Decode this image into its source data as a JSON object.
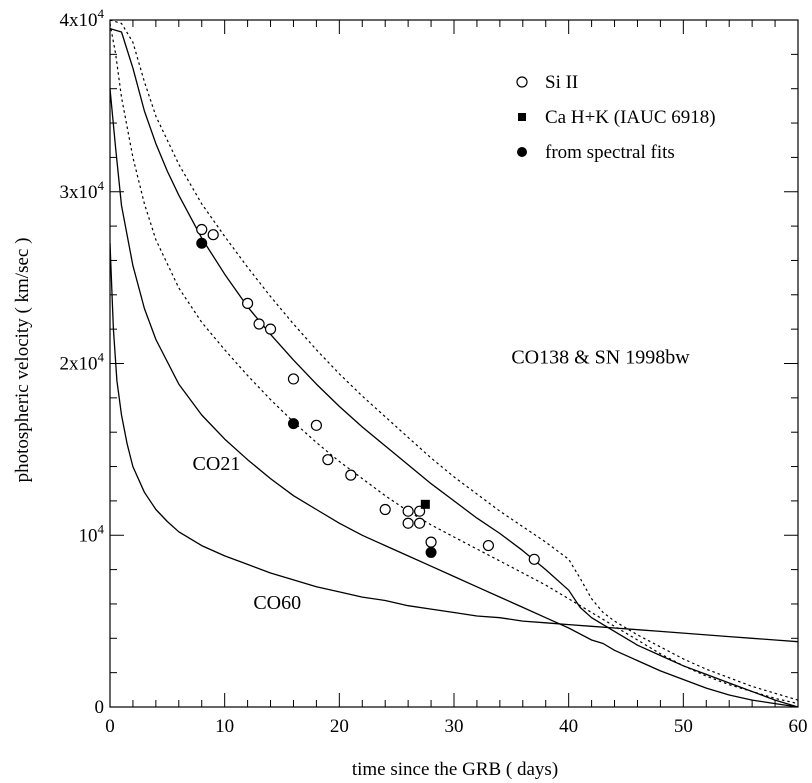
{
  "chart_data": {
    "type": "line",
    "xlabel": "time since the GRB ( days)",
    "ylabel": "photospheric velocity ( km/sec )",
    "xlim": [
      0,
      60
    ],
    "ylim": [
      0,
      40000
    ],
    "x_ticks": [
      {
        "value": 0,
        "label": "0"
      },
      {
        "value": 10,
        "label": "10"
      },
      {
        "value": 20,
        "label": "20"
      },
      {
        "value": 30,
        "label": "30"
      },
      {
        "value": 40,
        "label": "40"
      },
      {
        "value": 50,
        "label": "50"
      },
      {
        "value": 60,
        "label": "60"
      }
    ],
    "y_ticks": [
      {
        "value": 0,
        "base": "0",
        "exp": ""
      },
      {
        "value": 10000,
        "base": "10",
        "exp": "4"
      },
      {
        "value": 20000,
        "base": "2x10",
        "exp": "4"
      },
      {
        "value": 30000,
        "base": "3x10",
        "exp": "4"
      },
      {
        "value": 40000,
        "base": "4x10",
        "exp": "4"
      }
    ],
    "legend": {
      "placement": "top-right",
      "entries": [
        {
          "label": "Si II",
          "marker": "open-circle"
        },
        {
          "label": "Ca H+K (IAUC 6918)",
          "marker": "filled-square"
        },
        {
          "label": "from spectral fits",
          "marker": "filled-circle"
        }
      ]
    },
    "annotations": [
      {
        "text": "CO138 & SN 1998bw",
        "x": 35,
        "y": 20000
      },
      {
        "text": "CO21",
        "x": 7.2,
        "y": 13800
      },
      {
        "text": "CO60",
        "x": 12.5,
        "y": 5700
      }
    ],
    "series": [
      {
        "style": "solid",
        "points": [
          [
            0,
            39500
          ],
          [
            1,
            39300
          ],
          [
            2,
            37200
          ],
          [
            3,
            34700
          ],
          [
            4,
            32800
          ],
          [
            5,
            31200
          ],
          [
            6,
            29800
          ],
          [
            8,
            27300
          ],
          [
            10,
            25200
          ],
          [
            12,
            23300
          ],
          [
            14,
            21700
          ],
          [
            16,
            20200
          ],
          [
            18,
            18800
          ],
          [
            20,
            17500
          ],
          [
            22,
            16300
          ],
          [
            24,
            15200
          ],
          [
            26,
            14100
          ],
          [
            28,
            13000
          ],
          [
            30,
            12000
          ],
          [
            32,
            11000
          ],
          [
            34,
            10100
          ],
          [
            36,
            9100
          ],
          [
            38,
            8000
          ],
          [
            40,
            6800
          ],
          [
            41,
            5800
          ],
          [
            42,
            5200
          ],
          [
            44,
            4400
          ],
          [
            46,
            3600
          ],
          [
            48,
            3000
          ],
          [
            50,
            2400
          ],
          [
            52,
            1900
          ],
          [
            54,
            1400
          ],
          [
            56,
            900
          ],
          [
            58,
            400
          ],
          [
            60,
            0
          ]
        ]
      },
      {
        "style": "dotted",
        "points": [
          [
            0,
            40000
          ],
          [
            1,
            39800
          ],
          [
            2,
            38700
          ],
          [
            3,
            36400
          ],
          [
            4,
            34400
          ],
          [
            6,
            31600
          ],
          [
            8,
            29300
          ],
          [
            10,
            27400
          ],
          [
            12,
            25600
          ],
          [
            14,
            23900
          ],
          [
            16,
            22300
          ],
          [
            18,
            20800
          ],
          [
            20,
            19400
          ],
          [
            22,
            18100
          ],
          [
            24,
            16900
          ],
          [
            26,
            15700
          ],
          [
            28,
            14500
          ],
          [
            30,
            13400
          ],
          [
            32,
            12400
          ],
          [
            34,
            11400
          ],
          [
            36,
            10500
          ],
          [
            38,
            9600
          ],
          [
            40,
            8600
          ],
          [
            41,
            7500
          ],
          [
            42,
            6300
          ],
          [
            43,
            5500
          ],
          [
            44,
            5000
          ],
          [
            46,
            4200
          ],
          [
            48,
            3500
          ],
          [
            50,
            2800
          ],
          [
            52,
            2200
          ],
          [
            54,
            1700
          ],
          [
            56,
            1200
          ],
          [
            58,
            800
          ],
          [
            60,
            400
          ]
        ]
      },
      {
        "style": "dotted",
        "points": [
          [
            0,
            39800
          ],
          [
            0.5,
            38000
          ],
          [
            1,
            35500
          ],
          [
            2,
            32000
          ],
          [
            3,
            29300
          ],
          [
            4,
            27200
          ],
          [
            6,
            24400
          ],
          [
            8,
            22400
          ],
          [
            10,
            20800
          ],
          [
            12,
            19300
          ],
          [
            14,
            17900
          ],
          [
            16,
            16600
          ],
          [
            18,
            15400
          ],
          [
            20,
            14300
          ],
          [
            22,
            13300
          ],
          [
            24,
            12300
          ],
          [
            26,
            11400
          ],
          [
            28,
            10600
          ],
          [
            30,
            9900
          ],
          [
            32,
            9200
          ],
          [
            34,
            8500
          ],
          [
            36,
            7800
          ],
          [
            38,
            7100
          ],
          [
            40,
            6300
          ],
          [
            42,
            5500
          ],
          [
            44,
            4700
          ],
          [
            46,
            3900
          ],
          [
            48,
            3100
          ],
          [
            50,
            2400
          ],
          [
            52,
            1800
          ],
          [
            54,
            1300
          ],
          [
            56,
            900
          ],
          [
            58,
            500
          ],
          [
            60,
            200
          ]
        ]
      },
      {
        "style": "solid",
        "points": [
          [
            0,
            36000
          ],
          [
            0.5,
            32500
          ],
          [
            1,
            29200
          ],
          [
            2,
            25700
          ],
          [
            3,
            23200
          ],
          [
            4,
            21400
          ],
          [
            6,
            18800
          ],
          [
            8,
            17000
          ],
          [
            10,
            15600
          ],
          [
            12,
            14400
          ],
          [
            14,
            13300
          ],
          [
            16,
            12300
          ],
          [
            18,
            11500
          ],
          [
            20,
            10700
          ],
          [
            22,
            10000
          ],
          [
            24,
            9400
          ],
          [
            26,
            8800
          ],
          [
            28,
            8200
          ],
          [
            30,
            7600
          ],
          [
            32,
            7000
          ],
          [
            34,
            6400
          ],
          [
            36,
            5800
          ],
          [
            38,
            5200
          ],
          [
            40,
            4600
          ],
          [
            42,
            3900
          ],
          [
            43,
            3700
          ],
          [
            44,
            3300
          ],
          [
            46,
            2700
          ],
          [
            48,
            2100
          ],
          [
            50,
            1600
          ],
          [
            52,
            1100
          ],
          [
            54,
            700
          ],
          [
            56,
            400
          ],
          [
            58,
            200
          ],
          [
            60,
            0
          ]
        ]
      },
      {
        "style": "solid",
        "points": [
          [
            0,
            27000
          ],
          [
            0.3,
            22000
          ],
          [
            0.6,
            19000
          ],
          [
            1,
            17000
          ],
          [
            1.5,
            15300
          ],
          [
            2,
            14000
          ],
          [
            3,
            12500
          ],
          [
            4,
            11500
          ],
          [
            5,
            10800
          ],
          [
            6,
            10200
          ],
          [
            8,
            9400
          ],
          [
            10,
            8800
          ],
          [
            12,
            8300
          ],
          [
            14,
            7800
          ],
          [
            16,
            7400
          ],
          [
            18,
            7000
          ],
          [
            20,
            6700
          ],
          [
            22,
            6400
          ],
          [
            24,
            6200
          ],
          [
            26,
            5900
          ],
          [
            28,
            5700
          ],
          [
            30,
            5500
          ],
          [
            32,
            5300
          ],
          [
            34,
            5200
          ],
          [
            36,
            5000
          ],
          [
            38,
            4900
          ],
          [
            40,
            4800
          ],
          [
            42,
            4700
          ],
          [
            44,
            4600
          ],
          [
            46,
            4500
          ],
          [
            48,
            4400
          ],
          [
            50,
            4300
          ],
          [
            52,
            4200
          ],
          [
            54,
            4100
          ],
          [
            56,
            4000
          ],
          [
            58,
            3900
          ],
          [
            60,
            3800
          ]
        ]
      }
    ],
    "markers": {
      "open_circles": [
        [
          8,
          27800
        ],
        [
          9,
          27500
        ],
        [
          12,
          23500
        ],
        [
          13,
          22300
        ],
        [
          14,
          22000
        ],
        [
          16,
          19100
        ],
        [
          18,
          16400
        ],
        [
          19,
          14400
        ],
        [
          21,
          13500
        ],
        [
          24,
          11500
        ],
        [
          26,
          11400
        ],
        [
          27,
          11400
        ],
        [
          26,
          10700
        ],
        [
          27,
          10700
        ],
        [
          28,
          9600
        ],
        [
          33,
          9400
        ],
        [
          37,
          8600
        ]
      ],
      "filled_squares": [
        [
          27.5,
          11800
        ]
      ],
      "filled_circles": [
        [
          8,
          27000
        ],
        [
          16,
          16500
        ],
        [
          28,
          9000
        ]
      ]
    }
  }
}
